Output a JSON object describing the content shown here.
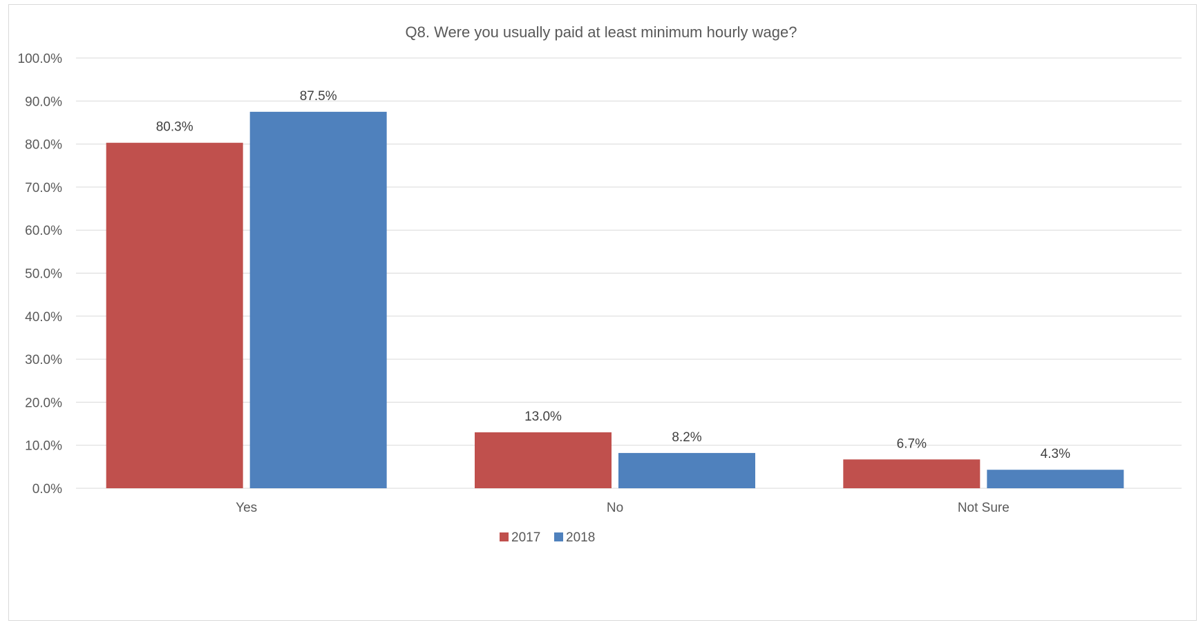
{
  "chart_data": {
    "type": "bar",
    "title": "Q8. Were you usually paid at least minimum hourly wage?",
    "xlabel": "",
    "ylabel": "",
    "categories": [
      "Yes",
      "No",
      "Not Sure"
    ],
    "series": [
      {
        "name": "2017",
        "values": [
          80.3,
          13.0,
          6.7
        ],
        "labels": [
          "80.3%",
          "13.0%",
          "6.7%"
        ],
        "color": "#C0504D"
      },
      {
        "name": "2018",
        "values": [
          87.5,
          8.2,
          4.3
        ],
        "labels": [
          "87.5%",
          "8.2%",
          "4.3%"
        ],
        "color": "#4F81BD"
      }
    ],
    "ylim": [
      0,
      100
    ],
    "yticks": [
      0,
      10,
      20,
      30,
      40,
      50,
      60,
      70,
      80,
      90,
      100
    ],
    "ytick_labels": [
      "0.0%",
      "10.0%",
      "20.0%",
      "30.0%",
      "40.0%",
      "50.0%",
      "60.0%",
      "70.0%",
      "80.0%",
      "90.0%",
      "100.0%"
    ],
    "grid": true,
    "legend": "bottom",
    "gridline_color": "#d9d9d9"
  }
}
